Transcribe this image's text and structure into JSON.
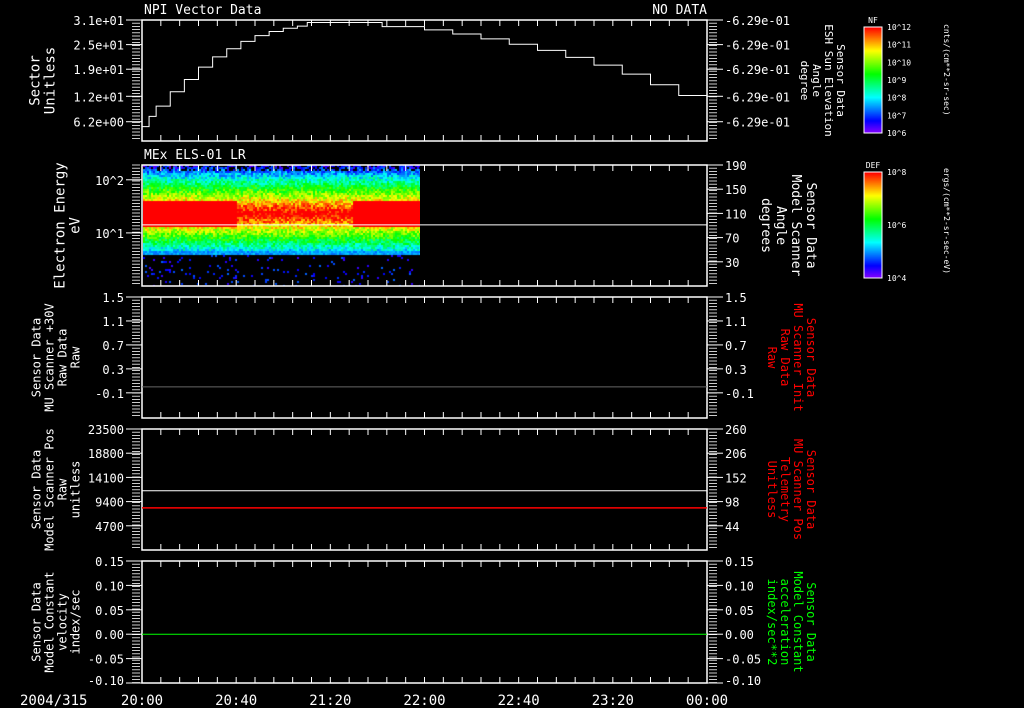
{
  "header": {
    "left_title": "NPI Vector Data",
    "right_status": "NO DATA",
    "panel2_title": "MEx ELS-01 LR"
  },
  "time_axis": {
    "date": "2004/315",
    "ticks": [
      "20:00",
      "20:40",
      "21:20",
      "22:00",
      "22:40",
      "23:20",
      "00:00"
    ],
    "range_hours": [
      20,
      24
    ]
  },
  "colors": {
    "white": "#ffffff",
    "red": "#ff0000",
    "green": "#00ff00",
    "axis": "#ffffff"
  },
  "colorbars": [
    {
      "title": "NF",
      "labels": [
        "10^12",
        "10^11",
        "10^10",
        "10^9",
        "10^8",
        "10^7",
        "10^6"
      ],
      "units": "cnts/(cm**2-sr-sec)"
    },
    {
      "title": "DEF",
      "labels": [
        "10^8",
        "10^6",
        "10^4"
      ],
      "units": "ergs/(cm**2-sr-sec-eV)"
    }
  ],
  "chart_data": [
    {
      "type": "line",
      "name": "sector",
      "left_label": [
        "Sector",
        "Unitless"
      ],
      "right_label": [
        "Sensor Data",
        "ESH Sun Elevation",
        "Angle",
        "degree"
      ],
      "left_ticks": [
        "3.1e+01",
        "2.5e+01",
        "1.9e+01",
        "1.2e+01",
        "6.2e+00"
      ],
      "left_tick_values": [
        31,
        25,
        19,
        12.4,
        6.2
      ],
      "right_ticks": [
        "-6.29e-01",
        "-6.29e-01",
        "-6.29e-01",
        "-6.29e-01",
        "-6.29e-01"
      ],
      "ylim": [
        1.5,
        31
      ],
      "series": [
        {
          "name": "Sector",
          "color": "#ffffff",
          "x": [
            20.0,
            20.05,
            20.1,
            20.2,
            20.3,
            20.4,
            20.5,
            20.6,
            20.7,
            20.8,
            20.9,
            21.0,
            21.1,
            21.17,
            21.3,
            21.5,
            21.6,
            21.7,
            21.8,
            22.0,
            22.2,
            22.4,
            22.6,
            22.8,
            23.0,
            23.2,
            23.4,
            23.6,
            23.8,
            24.0
          ],
          "y": [
            5.0,
            7.5,
            10.0,
            13.5,
            16.5,
            19.5,
            22.0,
            24.0,
            25.8,
            27.2,
            28.2,
            29.0,
            29.5,
            30.4,
            30.4,
            30.4,
            30.4,
            29.4,
            29.4,
            28.6,
            27.6,
            26.4,
            25.1,
            23.6,
            21.9,
            20.0,
            17.8,
            15.2,
            12.6,
            9.6
          ]
        }
      ]
    },
    {
      "type": "heatmap",
      "name": "electron-spectrogram",
      "left_label": [
        "Electron Energy",
        "eV"
      ],
      "right_label": [
        "Sensor Data",
        "Model Scanner",
        "Angle",
        "degrees"
      ],
      "left_ticks": [
        "10^2",
        "10^1"
      ],
      "ylim_energy_eV": [
        1,
        190
      ],
      "right_ticks": [
        "190",
        "150",
        "110",
        "70",
        "30"
      ],
      "right_tick_values": [
        190,
        150,
        110,
        70,
        30
      ],
      "right_ylim": [
        -10,
        190
      ],
      "data_x_range": [
        20.0,
        21.92
      ],
      "notes": "Peak flux (red) at 15-40 eV during 20:00-20:40 and 21:30-21:55",
      "series": [
        {
          "name": "Scanner Angle",
          "color": "#ffffff",
          "value": 91
        }
      ]
    },
    {
      "type": "line",
      "name": "mu-scanner-30v",
      "left_label": [
        "Sensor Data",
        "MU Scanner +30V",
        "Raw Data",
        "Raw"
      ],
      "right_label": [
        "Sensor Data",
        "MU Scanner Init",
        "Raw Data",
        "Raw"
      ],
      "left_ticks": [
        "1.5",
        "1.1",
        "0.7",
        "0.3",
        "-0.1"
      ],
      "left_tick_values": [
        1.5,
        1.1,
        0.7,
        0.3,
        -0.1
      ],
      "right_ticks": [
        "1.5",
        "1.1",
        "0.7",
        "0.3",
        "-0.1"
      ],
      "ylim": [
        -0.52,
        1.5
      ],
      "series": [
        {
          "name": "MU Scanner Init",
          "color": "#ff0000",
          "value": 0.0
        }
      ]
    },
    {
      "type": "line",
      "name": "scanner-position",
      "left_label": [
        "Sensor Data",
        "Model Scanner Pos",
        "Raw",
        "unitless"
      ],
      "right_label": [
        "Sensor Data",
        "MU Scanner Pos",
        "Telemetry",
        "Unitless"
      ],
      "left_ticks": [
        "23500",
        "18800",
        "14100",
        "9400",
        "4700"
      ],
      "left_tick_values": [
        23500,
        18800,
        14100,
        9400,
        4700
      ],
      "right_ticks": [
        "260",
        "206",
        "152",
        "98",
        "44"
      ],
      "right_tick_values": [
        260,
        206,
        152,
        98,
        44
      ],
      "ylim": [
        0,
        23500
      ],
      "right_ylim": [
        -10,
        260
      ],
      "series": [
        {
          "name": "Model Scanner Pos",
          "color": "#ffffff",
          "value": 11500
        },
        {
          "name": "MU Scanner Pos",
          "color": "#ff0000",
          "value_right": 84
        }
      ]
    },
    {
      "type": "line",
      "name": "scanner-velocity",
      "left_label": [
        "Sensor Data",
        "Model Constant",
        "velocity",
        "index/sec"
      ],
      "right_label": [
        "Sensor Data",
        "Model Constant",
        "acceleration",
        "index/sec**2"
      ],
      "left_ticks": [
        "0.15",
        "0.10",
        "0.05",
        "0.00",
        "-0.05",
        "-0.10"
      ],
      "left_tick_values": [
        0.15,
        0.1,
        0.05,
        0.0,
        -0.05,
        -0.1
      ],
      "right_ticks": [
        "0.15",
        "0.10",
        "0.05",
        "0.00",
        "-0.05",
        "-0.10"
      ],
      "ylim": [
        -0.1,
        0.15
      ],
      "series": [
        {
          "name": "acceleration",
          "color": "#00ff00",
          "value": 0.0
        }
      ]
    }
  ]
}
